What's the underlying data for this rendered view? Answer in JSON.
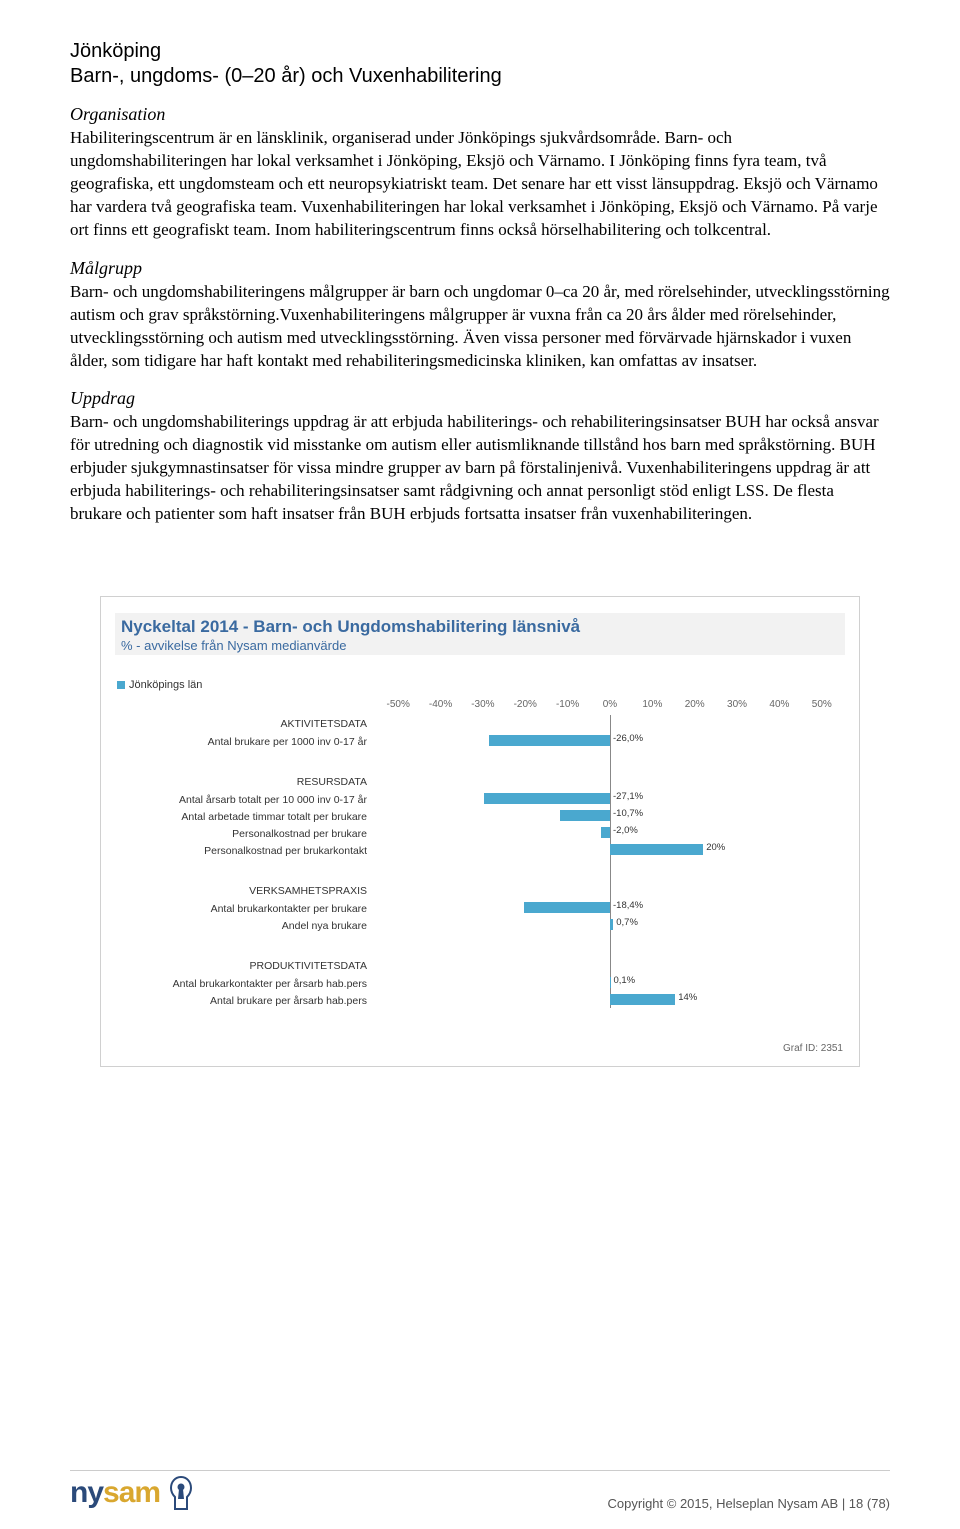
{
  "header": {
    "title": "Jönköping",
    "subtitle": "Barn-, ungdoms- (0–20 år) och Vuxenhabilitering"
  },
  "sections": {
    "organisation": {
      "heading": "Organisation",
      "body": "Habiliteringscentrum är en länsklinik, organiserad under Jönköpings sjukvårdsområde. Barn- och ungdomshabiliteringen har lokal verksamhet i Jönköping, Eksjö och Värnamo. I Jönköping finns fyra team, två geografiska, ett ungdomsteam och ett neuropsykiatriskt team. Det senare har ett visst länsuppdrag. Eksjö och Värnamo har vardera två geografiska team. Vuxenhabiliteringen har lokal verksamhet i Jönköping, Eksjö och Värnamo. På varje ort finns ett geografiskt team. Inom habiliteringscentrum finns också hörselhabilitering och tolkcentral."
    },
    "malgrupp": {
      "heading": "Målgrupp",
      "body": "Barn- och ungdomshabiliteringens målgrupper är barn och ungdomar 0–ca 20 år, med rörelsehinder, utvecklingsstörning autism och grav språkstörning.Vuxenhabiliteringens målgrupper är vuxna från ca 20 års ålder med rörelsehinder, utvecklingsstörning och autism med utvecklingsstörning. Även vissa personer med förvärvade hjärnskador i vuxen ålder, som tidigare har haft kontakt med rehabiliteringsmedicinska kliniken, kan omfattas av insatser."
    },
    "uppdrag": {
      "heading": "Uppdrag",
      "body": "Barn- och ungdomshabiliterings uppdrag är att erbjuda habiliterings- och rehabiliteringsinsatser BUH har också ansvar för utredning och diagnostik vid misstanke om autism eller autismliknande tillstånd hos barn med språkstörning. BUH erbjuder sjukgymnastinsatser för vissa mindre grupper av barn på förstalinjenivå. Vuxenhabiliteringens uppdrag är att erbjuda habiliterings- och rehabiliteringsinsatser samt rådgivning och annat personligt stöd enligt LSS. De flesta brukare och patienter som haft insatser från BUH erbjuds fortsatta insatser från vuxenhabiliteringen."
    }
  },
  "chart": {
    "title": "Nyckeltal 2014 - Barn- och Ungdomshabilitering länsnivå",
    "subtitle": "% - avvikelse från Nysam medianvärde",
    "legend": "Jönköpings län",
    "axis_min": -50,
    "axis_max": 50,
    "axis_ticks": [
      "-50%",
      "-40%",
      "-30%",
      "-20%",
      "-10%",
      "0%",
      "10%",
      "20%",
      "30%",
      "40%",
      "50%"
    ],
    "bar_color": "#4aa8cf",
    "groups": [
      {
        "name": "AKTIVITETSDATA",
        "rows": [
          {
            "label": "Antal brukare per 1000 inv 0-17 år",
            "value": -26.0,
            "display": "-26,0%"
          }
        ]
      },
      {
        "name": "RESURSDATA",
        "rows": [
          {
            "label": "Antal årsarb totalt per 10 000 inv 0-17 år",
            "value": -27.1,
            "display": "-27,1%"
          },
          {
            "label": "Antal arbetade timmar totalt per brukare",
            "value": -10.7,
            "display": "-10,7%"
          },
          {
            "label": "Personalkostnad per brukare",
            "value": -2.0,
            "display": "-2,0%"
          },
          {
            "label": "Personalkostnad per brukarkontakt",
            "value": 20.0,
            "display": "20%"
          }
        ]
      },
      {
        "name": "VERKSAMHETSPRAXIS",
        "rows": [
          {
            "label": "Antal brukarkontakter per brukare",
            "value": -18.4,
            "display": "-18,4%"
          },
          {
            "label": "Andel nya brukare",
            "value": 0.7,
            "display": "0,7%"
          }
        ]
      },
      {
        "name": "PRODUKTIVITETSDATA",
        "rows": [
          {
            "label": "Antal brukarkontakter per årsarb hab.pers",
            "value": 0.1,
            "display": "0,1%"
          },
          {
            "label": "Antal brukare per årsarb hab.pers",
            "value": 14.0,
            "display": "14%"
          }
        ]
      }
    ],
    "graf_id": "Graf ID: 2351"
  },
  "footer": {
    "logo_ny": "ny",
    "logo_sam": "sam",
    "copyright": "Copyright © 2015, Helseplan Nysam AB  |  18 (78)"
  }
}
